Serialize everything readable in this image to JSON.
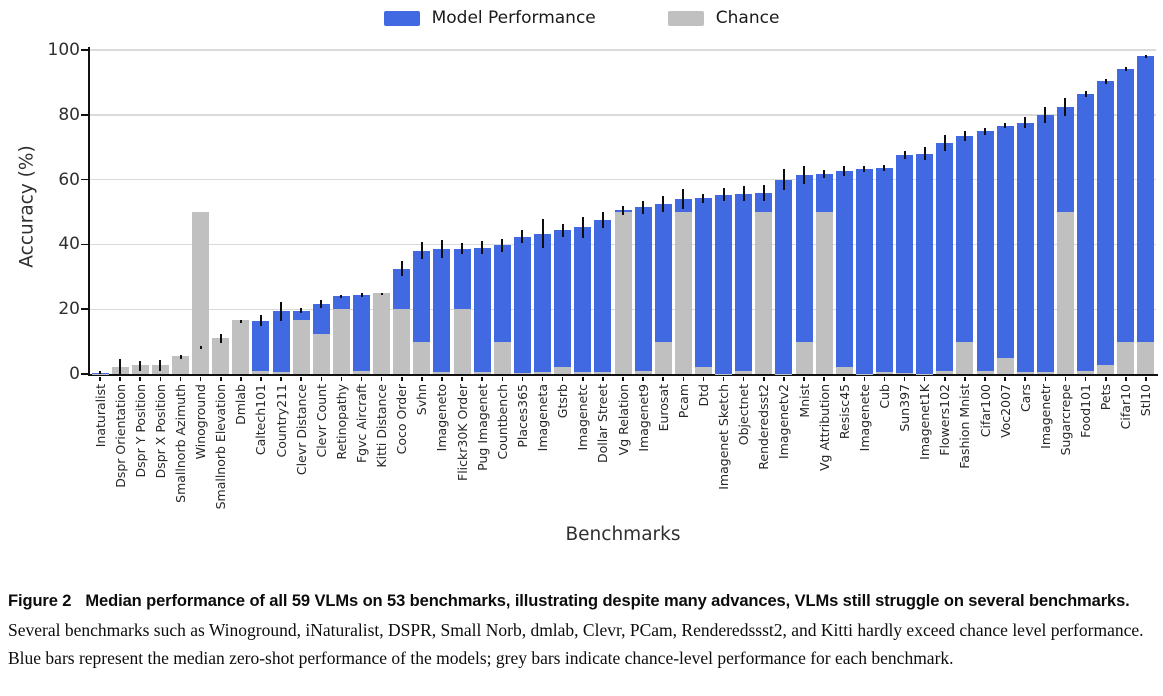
{
  "legend": [
    {
      "label": "Model Performance",
      "color": "#4169e1"
    },
    {
      "label": "Chance",
      "color": "#c0c0c0"
    }
  ],
  "colors": {
    "model_bar": "#4169e1",
    "chance_bar": "#c0c0c0",
    "error_bar": "#0e0e0e",
    "gridline": "#dadada",
    "axis": "#111111"
  },
  "chart_data": {
    "type": "bar",
    "title": "",
    "xlabel": "Benchmarks",
    "ylabel": "Accuracy (%)",
    "ylim": [
      0,
      100
    ],
    "y_ticks": [
      0,
      20,
      40,
      60,
      80,
      100
    ],
    "grid": "horizontal",
    "legend_position": "top-center",
    "categories": [
      "Inaturalist",
      "Dspr Orientation",
      "Dspr Y Position",
      "Dspr X Position",
      "Smallnorb Azimuth",
      "Winoground",
      "Smallnorb Elevation",
      "Dmlab",
      "Caltech101",
      "Country211",
      "Clevr Distance",
      "Clevr Count",
      "Retinopathy",
      "Fgvc Aircraft",
      "Kitti Distance",
      "Coco Order",
      "Svhn",
      "Imageneto",
      "Flickr30K Order",
      "Pug Imagenet",
      "Countbench",
      "Places365",
      "Imageneta",
      "Gtsrb",
      "Imagenetc",
      "Dollar Street",
      "Vg Relation",
      "Imagenet9",
      "Eurosat",
      "Pcam",
      "Dtd",
      "Imagenet Sketch",
      "Objectnet",
      "Renderedsst2",
      "Imagenetv2",
      "Mnist",
      "Vg Attribution",
      "Resisc45",
      "Imagenete",
      "Cub",
      "Sun397",
      "Imagenet1K",
      "Flowers102",
      "Fashion Mnist",
      "Cifar100",
      "Voc2007",
      "Cars",
      "Imagenetr",
      "Sugarcrepe",
      "Food101",
      "Pets",
      "Cifar10",
      "Stl10"
    ],
    "series": [
      {
        "name": "Model Performance",
        "values": [
          0.4,
          2.0,
          2.5,
          2.6,
          5.3,
          8.2,
          11.0,
          16.2,
          16.5,
          19.3,
          19.5,
          21.6,
          24.0,
          24.5,
          24.7,
          32.5,
          38.1,
          38.5,
          38.7,
          39.0,
          39.7,
          42.3,
          43.3,
          44.3,
          45.3,
          47.6,
          50.5,
          51.5,
          52.5,
          54.0,
          54.2,
          55.4,
          55.7,
          55.9,
          60.0,
          61.5,
          61.7,
          62.6,
          63.3,
          63.6,
          67.7,
          68.0,
          71.3,
          73.5,
          74.9,
          76.6,
          77.6,
          80.0,
          82.3,
          86.4,
          90.3,
          94.2,
          98.0
        ]
      },
      {
        "name": "Chance",
        "values": [
          0.1,
          2.3,
          2.7,
          2.7,
          5.6,
          50.0,
          11.1,
          16.7,
          1.0,
          0.5,
          16.7,
          12.5,
          20.0,
          1.0,
          25.0,
          20.0,
          10.0,
          0.5,
          20.0,
          0.5,
          10.0,
          0.3,
          0.5,
          2.3,
          0.5,
          0.7,
          50.0,
          1.0,
          10.0,
          50.0,
          2.1,
          0.1,
          1.0,
          50.0,
          0.1,
          10.0,
          50.0,
          2.2,
          0.1,
          0.5,
          0.3,
          0.1,
          1.0,
          10.0,
          1.0,
          5.0,
          0.5,
          0.5,
          50.0,
          1.0,
          2.7,
          10.0,
          10.0
        ]
      }
    ],
    "error_bars": {
      "series": "Model Performance",
      "values": [
        0.4,
        2.5,
        1.5,
        1.8,
        0.7,
        0.6,
        1.5,
        0.5,
        1.8,
        2.9,
        0.8,
        1.2,
        0.5,
        0.6,
        0.4,
        2.3,
        2.5,
        2.8,
        1.6,
        2.0,
        2.0,
        2.0,
        4.5,
        2.0,
        3.3,
        2.5,
        1.5,
        2.0,
        2.5,
        3.0,
        1.5,
        2.0,
        2.2,
        2.5,
        3.3,
        2.8,
        1.2,
        1.5,
        0.8,
        0.8,
        1.2,
        2.0,
        2.5,
        1.6,
        1.0,
        0.8,
        1.8,
        2.5,
        2.8,
        1.0,
        0.8,
        0.7,
        0.4
      ]
    }
  },
  "caption": {
    "figure_label": "Figure 2",
    "bold_text": "Median performance of all 59 VLMs on 53 benchmarks, illustrating despite many advances, VLMs still struggle on several benchmarks.",
    "body_text": " Several benchmarks such as Winoground, iNaturalist, DSPR, Small Norb, dmlab, Clevr, PCam, Renderedssst2, and Kitti hardly exceed chance level performance. Blue bars represent the median zero-shot performance of the models; grey bars indicate chance-level performance for each benchmark."
  }
}
